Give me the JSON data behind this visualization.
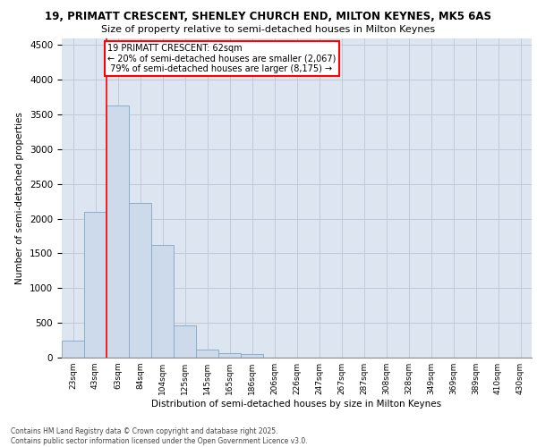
{
  "title_line1": "19, PRIMATT CRESCENT, SHENLEY CHURCH END, MILTON KEYNES, MK5 6AS",
  "title_line2": "Size of property relative to semi-detached houses in Milton Keynes",
  "xlabel": "Distribution of semi-detached houses by size in Milton Keynes",
  "ylabel": "Number of semi-detached properties",
  "categories": [
    "23sqm",
    "43sqm",
    "63sqm",
    "84sqm",
    "104sqm",
    "125sqm",
    "145sqm",
    "165sqm",
    "186sqm",
    "206sqm",
    "226sqm",
    "247sqm",
    "267sqm",
    "287sqm",
    "308sqm",
    "328sqm",
    "349sqm",
    "369sqm",
    "389sqm",
    "410sqm",
    "430sqm"
  ],
  "values": [
    250,
    2100,
    3625,
    2225,
    1625,
    460,
    110,
    60,
    50,
    5,
    3,
    2,
    1,
    0,
    0,
    0,
    0,
    0,
    0,
    0,
    0
  ],
  "bar_color": "#ccdaeb",
  "bar_edge_color": "#8aafc8",
  "subject_size": "62sqm",
  "pct_smaller": 20,
  "count_smaller": 2067,
  "pct_larger": 79,
  "count_larger": 8175,
  "ylim": [
    0,
    4600
  ],
  "yticks": [
    0,
    500,
    1000,
    1500,
    2000,
    2500,
    3000,
    3500,
    4000,
    4500
  ],
  "grid_color": "#c0cad8",
  "bg_color": "#dde6f0",
  "footer_line1": "Contains HM Land Registry data © Crown copyright and database right 2025.",
  "footer_line2": "Contains public sector information licensed under the Open Government Licence v3.0."
}
